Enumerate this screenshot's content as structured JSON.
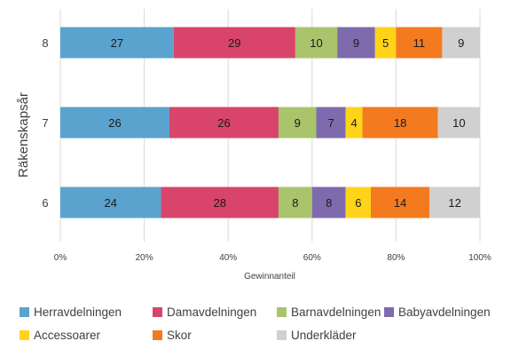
{
  "chart_data": {
    "type": "bar",
    "orientation": "horizontal",
    "stacked": "percent",
    "categories": [
      "8",
      "7",
      "6"
    ],
    "series": [
      {
        "name": "Herravdelningen",
        "values": [
          27,
          26,
          24
        ],
        "color": "#5BA3CF"
      },
      {
        "name": "Damavdelningen",
        "values": [
          29,
          26,
          28
        ],
        "color": "#D9446A"
      },
      {
        "name": "Barnavdelningen",
        "values": [
          10,
          9,
          8
        ],
        "color": "#A9C46B"
      },
      {
        "name": "Babyavdelningen",
        "values": [
          9,
          7,
          8
        ],
        "color": "#7E6BAE"
      },
      {
        "name": "Accessoarer",
        "values": [
          5,
          4,
          6
        ],
        "color": "#FFD319"
      },
      {
        "name": "Skor",
        "values": [
          11,
          18,
          14
        ],
        "color": "#F47A20"
      },
      {
        "name": "Underkläder",
        "values": [
          9,
          10,
          12
        ],
        "color": "#D0D0D0"
      }
    ],
    "xlabel": "Gewinnanteil",
    "ylabel": "Räkenskapsår",
    "xlim": [
      0,
      100
    ],
    "xticks": [
      "0%",
      "20%",
      "40%",
      "60%",
      "80%",
      "100%"
    ],
    "grid": true,
    "legend_position": "bottom"
  }
}
